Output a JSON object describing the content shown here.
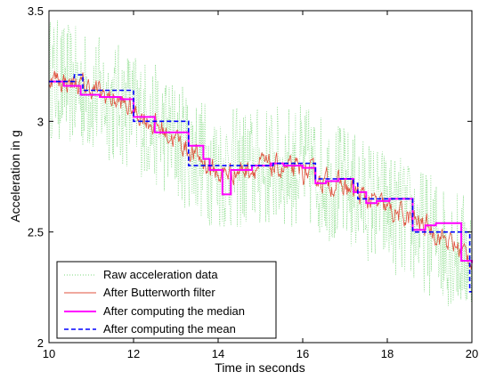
{
  "chart_data": {
    "type": "line",
    "title": "",
    "xlabel": "Time in seconds",
    "ylabel": "Acceleration in g",
    "xlim": [
      10,
      20
    ],
    "ylim": [
      2,
      3.5
    ],
    "xticks": [
      10,
      12,
      14,
      16,
      18,
      20
    ],
    "yticks": [
      2,
      2.5,
      3,
      3.5
    ],
    "xtick_labels": [
      "10",
      "12",
      "14",
      "16",
      "18",
      "20"
    ],
    "ytick_labels": [
      "2",
      "2.5",
      "3",
      "3.5"
    ],
    "grid": false,
    "legend_position": "bottom-left",
    "series": [
      {
        "name": "Raw acceleration data",
        "color": "#7fd97f",
        "style": "dotted",
        "trend": [
          [
            10,
            3.2
          ],
          [
            12,
            3.05
          ],
          [
            14,
            2.78
          ],
          [
            16,
            2.8
          ],
          [
            18,
            2.6
          ],
          [
            20,
            2.38
          ]
        ],
        "spread": 0.28
      },
      {
        "name": "After Butterworth filter",
        "color": "#e0503c",
        "style": "solid-thin",
        "trend": [
          [
            10,
            3.2
          ],
          [
            11,
            3.15
          ],
          [
            12,
            3.05
          ],
          [
            13,
            2.92
          ],
          [
            14,
            2.76
          ],
          [
            15,
            2.8
          ],
          [
            16,
            2.77
          ],
          [
            17,
            2.7
          ],
          [
            18,
            2.6
          ],
          [
            19,
            2.52
          ],
          [
            20,
            2.38
          ]
        ],
        "spread": 0.05
      },
      {
        "name": "After computing the median",
        "color": "#ff00ff",
        "style": "solid-thick",
        "steps": [
          [
            10,
            3.18
          ],
          [
            10.35,
            3.16
          ],
          [
            10.75,
            3.12
          ],
          [
            11.2,
            3.11
          ],
          [
            11.7,
            3.1
          ],
          [
            12,
            3.02
          ],
          [
            12.5,
            2.95
          ],
          [
            13.3,
            2.89
          ],
          [
            13.65,
            2.83
          ],
          [
            13.8,
            2.78
          ],
          [
            14.1,
            2.67
          ],
          [
            14.3,
            2.78
          ],
          [
            14.8,
            2.8
          ],
          [
            15.25,
            2.81
          ],
          [
            15.55,
            2.8
          ],
          [
            16.0,
            2.79
          ],
          [
            16.3,
            2.72
          ],
          [
            16.55,
            2.73
          ],
          [
            16.85,
            2.74
          ],
          [
            17.2,
            2.68
          ],
          [
            17.5,
            2.63
          ],
          [
            17.75,
            2.64
          ],
          [
            18.05,
            2.65
          ],
          [
            18.6,
            2.51
          ],
          [
            18.9,
            2.53
          ],
          [
            19.15,
            2.54
          ],
          [
            19.75,
            2.37
          ],
          [
            20,
            2.36
          ]
        ]
      },
      {
        "name": "After computing the mean",
        "color": "#0000ff",
        "style": "dashed",
        "steps": [
          [
            10,
            3.18
          ],
          [
            10.6,
            3.21
          ],
          [
            10.8,
            3.14
          ],
          [
            12,
            3.0
          ],
          [
            13.3,
            2.8
          ],
          [
            14.55,
            2.8
          ],
          [
            15.3,
            2.81
          ],
          [
            15.75,
            2.81
          ],
          [
            16.3,
            2.74
          ],
          [
            17.2,
            2.72
          ],
          [
            17.3,
            2.65
          ],
          [
            18.6,
            2.5
          ],
          [
            19.8,
            2.5
          ],
          [
            19.95,
            2.23
          ],
          [
            20,
            2.23
          ]
        ]
      }
    ]
  }
}
